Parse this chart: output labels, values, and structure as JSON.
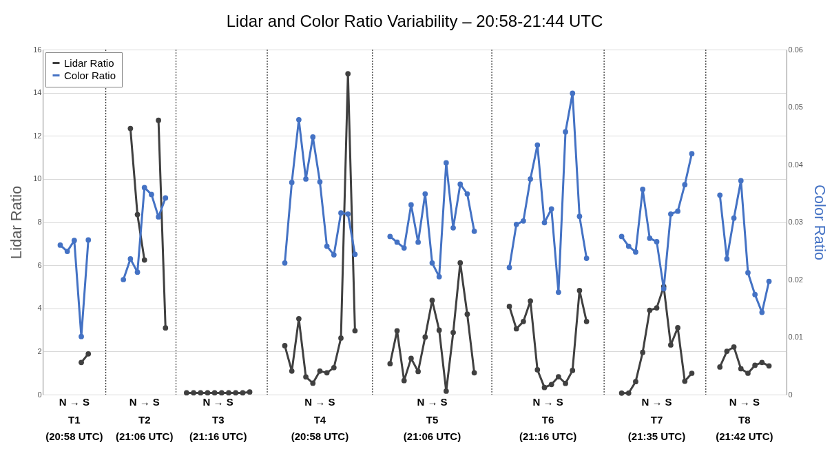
{
  "chart_data": {
    "type": "line",
    "title": "Lidar and Color Ratio Variability – 20:58-21:44 UTC",
    "ylabel": "Lidar Ratio",
    "y2label": "Color Ratio",
    "categories": [
      null,
      null,
      null,
      null,
      null,
      null,
      null,
      null,
      null,
      null,
      null,
      null,
      null,
      null,
      null,
      null,
      null,
      null,
      null,
      null,
      null,
      null,
      null,
      null,
      null,
      null,
      null,
      null,
      null,
      null,
      null,
      null,
      null,
      null,
      null,
      null,
      null,
      null,
      null,
      null,
      null,
      null,
      null,
      null,
      null,
      null,
      null,
      null,
      null,
      null,
      null,
      null,
      null,
      null,
      null,
      null,
      null,
      null,
      null,
      null,
      null,
      null,
      null,
      null,
      null,
      null,
      null,
      null,
      null,
      null,
      null,
      null,
      null,
      null,
      null,
      null,
      null,
      null,
      null,
      null,
      null,
      null,
      null,
      null,
      null,
      null,
      null,
      null,
      null,
      null,
      null,
      null,
      null,
      null,
      null,
      null,
      null,
      null,
      null,
      null,
      null,
      null,
      null,
      null,
      null,
      null
    ],
    "ylim": [
      0,
      16
    ],
    "yticks": [
      0,
      2,
      4,
      6,
      8,
      10,
      12,
      14,
      16
    ],
    "y2lim": [
      0,
      0.06
    ],
    "y2ticks": [
      0,
      0.01,
      0.02,
      0.03,
      0.04,
      0.05,
      0.06
    ],
    "tick_labels": "y",
    "grid": "y",
    "legend": "top left",
    "marker": "circle",
    "line_style": "solid",
    "series": [
      {
        "name": "Lidar Ratio",
        "color": "#404040",
        "values": [
          null,
          null,
          null,
          null,
          null,
          1.49,
          1.89,
          null,
          null,
          null,
          null,
          null,
          12.34,
          8.35,
          6.24,
          null,
          12.72,
          3.09,
          null,
          null,
          0.08,
          0.08,
          0.08,
          0.08,
          0.08,
          0.08,
          0.08,
          0.08,
          0.08,
          0.12,
          null,
          null,
          null,
          null,
          2.27,
          1.09,
          3.52,
          0.82,
          0.53,
          1.09,
          1.01,
          1.25,
          2.62,
          14.88,
          2.96,
          null,
          null,
          null,
          null,
          1.43,
          2.96,
          0.65,
          1.68,
          1.07,
          2.67,
          4.37,
          2.99,
          0.16,
          2.88,
          6.11,
          3.73,
          1.01,
          null,
          null,
          null,
          null,
          4.09,
          3.05,
          3.39,
          4.34,
          1.15,
          0.33,
          0.47,
          0.83,
          0.52,
          1.12,
          4.83,
          3.39,
          null,
          null,
          null,
          null,
          0.07,
          0.07,
          0.6,
          1.96,
          3.91,
          4.02,
          5.01,
          2.3,
          3.1,
          0.62,
          0.99,
          null,
          null,
          null,
          1.28,
          2.01,
          2.21,
          1.2,
          0.99,
          1.36,
          1.49,
          1.33,
          null,
          null
        ]
      },
      {
        "name": "Color Ratio",
        "color": "#4472c4",
        "axis": "y2",
        "values": [
          null,
          null,
          0.026,
          0.0249,
          0.0268,
          0.0101,
          0.0269,
          null,
          null,
          null,
          null,
          0.02,
          0.0236,
          0.0213,
          0.036,
          0.0348,
          0.0309,
          0.0342,
          null,
          null,
          null,
          null,
          null,
          null,
          null,
          null,
          null,
          null,
          null,
          null,
          null,
          null,
          null,
          null,
          0.0229,
          0.0369,
          0.0478,
          0.0375,
          0.0448,
          0.037,
          0.0258,
          0.0243,
          0.0316,
          0.0314,
          0.0244,
          null,
          null,
          null,
          null,
          0.0275,
          0.0265,
          0.0255,
          0.033,
          0.0265,
          0.0349,
          0.0229,
          0.0205,
          0.0403,
          0.029,
          0.0366,
          0.0349,
          0.0284,
          null,
          null,
          null,
          null,
          0.0221,
          0.0296,
          0.0302,
          0.0375,
          0.0434,
          0.0299,
          0.0323,
          0.0178,
          0.0457,
          0.0524,
          0.031,
          0.0237,
          null,
          null,
          null,
          null,
          0.0275,
          0.0258,
          0.0248,
          0.0357,
          0.0272,
          0.0266,
          0.0184,
          0.0314,
          0.0319,
          0.0365,
          0.0419,
          null,
          null,
          null,
          0.0347,
          0.0236,
          0.0307,
          0.0372,
          0.0212,
          0.0174,
          0.0143,
          0.0197,
          null,
          null
        ]
      }
    ],
    "annotations": [
      "N → S",
      "N → S",
      "N → S",
      "N → S",
      "N → S",
      "N → S",
      "N → S",
      "N → S",
      "T1\n(20:58 UTC)",
      "T2\n(21:06 UTC)",
      "T3\n(21:16 UTC)",
      "T4\n(20:58 UTC)",
      "T5\n(21:06 UTC)",
      "T6\n(21:16 UTC)",
      "T7\n(21:35 UTC)",
      "T8\n(21:42 UTC)"
    ]
  }
}
